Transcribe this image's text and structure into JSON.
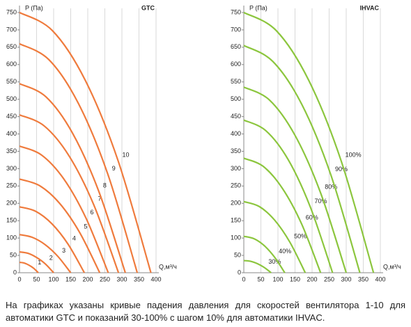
{
  "chart_data": [
    {
      "type": "line",
      "title": "GTC",
      "y_label": "P (Па)",
      "x_label": "Q,м³/ч",
      "color": "#ef7b3d",
      "xlim": [
        0,
        400
      ],
      "ylim": [
        0,
        750
      ],
      "xticks": [
        0,
        50,
        100,
        150,
        200,
        250,
        300,
        350,
        400
      ],
      "yticks": [
        0,
        50,
        100,
        150,
        200,
        250,
        300,
        350,
        400,
        450,
        500,
        550,
        600,
        650,
        700,
        750
      ],
      "grid": true,
      "series": [
        {
          "name": "1",
          "x": [
            0,
            13.75,
            27.5,
            41.25,
            55
          ],
          "values": [
            30,
            28,
            22,
            13,
            0
          ]
        },
        {
          "name": "2",
          "x": [
            0,
            25,
            50,
            75,
            100
          ],
          "values": [
            60,
            56,
            44,
            26,
            0
          ]
        },
        {
          "name": "3",
          "x": [
            0,
            37.5,
            75,
            112.5,
            150
          ],
          "values": [
            110,
            102,
            81,
            47,
            0
          ]
        },
        {
          "name": "4",
          "x": [
            0,
            47.5,
            95,
            142.5,
            190
          ],
          "values": [
            190,
            177,
            141,
            82,
            0
          ]
        },
        {
          "name": "5",
          "x": [
            0,
            58.75,
            117.5,
            176.25,
            235
          ],
          "values": [
            270,
            251,
            200,
            116,
            0
          ]
        },
        {
          "name": "6",
          "x": [
            0,
            65,
            130,
            195,
            260
          ],
          "values": [
            365,
            339,
            270,
            157,
            0
          ]
        },
        {
          "name": "7",
          "x": [
            0,
            72.5,
            145,
            217.5,
            290
          ],
          "values": [
            455,
            423,
            337,
            196,
            0
          ]
        },
        {
          "name": "8",
          "x": [
            0,
            77.5,
            155,
            232.5,
            310
          ],
          "values": [
            545,
            507,
            403,
            234,
            0
          ]
        },
        {
          "name": "9",
          "x": [
            0,
            86.25,
            172.5,
            258.75,
            345
          ],
          "values": [
            660,
            614,
            488,
            284,
            0
          ]
        },
        {
          "name": "10",
          "x": [
            0,
            96.25,
            192.5,
            288.75,
            385
          ],
          "values": [
            750,
            698,
            555,
            323,
            0
          ]
        }
      ]
    },
    {
      "type": "line",
      "title": "IHVAC",
      "y_label": "P (Па)",
      "x_label": "Q,м³/ч",
      "color": "#8cc63e",
      "xlim": [
        0,
        400
      ],
      "ylim": [
        0,
        750
      ],
      "xticks": [
        0,
        50,
        100,
        150,
        200,
        250,
        300,
        350,
        400
      ],
      "yticks": [
        0,
        50,
        100,
        150,
        200,
        250,
        300,
        350,
        400,
        450,
        500,
        550,
        600,
        650,
        700,
        750
      ],
      "grid": true,
      "series": [
        {
          "name": "30%",
          "x": [
            0,
            20,
            40,
            60,
            80
          ],
          "values": [
            35,
            33,
            26,
            15,
            0
          ]
        },
        {
          "name": "40%",
          "x": [
            0,
            30,
            60,
            90,
            120
          ],
          "values": [
            105,
            98,
            78,
            45,
            0
          ]
        },
        {
          "name": "50%",
          "x": [
            0,
            45,
            90,
            135,
            180
          ],
          "values": [
            205,
            191,
            152,
            88,
            0
          ]
        },
        {
          "name": "60%",
          "x": [
            0,
            56.25,
            112.5,
            168.75,
            225
          ],
          "values": [
            330,
            307,
            244,
            142,
            0
          ]
        },
        {
          "name": "70%",
          "x": [
            0,
            65,
            130,
            195,
            260
          ],
          "values": [
            440,
            409,
            326,
            189,
            0
          ]
        },
        {
          "name": "80%",
          "x": [
            0,
            75,
            150,
            225,
            300
          ],
          "values": [
            535,
            498,
            396,
            230,
            0
          ]
        },
        {
          "name": "90%",
          "x": [
            0,
            85,
            170,
            255,
            340
          ],
          "values": [
            655,
            609,
            485,
            282,
            0
          ]
        },
        {
          "name": "100%",
          "x": [
            0,
            95,
            190,
            285,
            380
          ],
          "values": [
            750,
            698,
            555,
            323,
            0
          ]
        }
      ]
    }
  ],
  "caption": "На графиках указаны кривые падения давления для скоростей вентилятора 1-10 для автоматики GTC и показаний 30-100% с шагом 10% для автоматики IHVAC."
}
